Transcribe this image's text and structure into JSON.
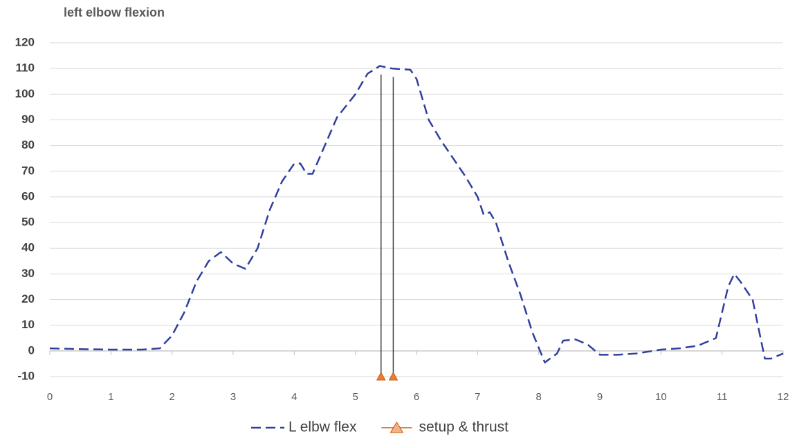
{
  "chart_data": {
    "type": "line",
    "title": "left elbow flexion",
    "xlim": [
      0,
      12
    ],
    "xticks": [
      0,
      1,
      2,
      3,
      4,
      5,
      6,
      7,
      8,
      9,
      10,
      11,
      12
    ],
    "ylim": [
      -10,
      120
    ],
    "yticks": [
      -10,
      0,
      10,
      20,
      30,
      40,
      50,
      60,
      70,
      80,
      90,
      100,
      110,
      120
    ],
    "grid": true,
    "legend": "bottom",
    "series": [
      {
        "name": "L elbw flex",
        "color": "#2f3f9c",
        "style": "dashed",
        "x": [
          0,
          0.5,
          1,
          1.5,
          1.8,
          2,
          2.2,
          2.4,
          2.6,
          2.8,
          3,
          3.2,
          3.4,
          3.6,
          3.8,
          4,
          4.1,
          4.2,
          4.3,
          4.5,
          4.7,
          5,
          5.2,
          5.4,
          5.6,
          5.9,
          6,
          6.2,
          6.4,
          6.6,
          6.8,
          7,
          7.1,
          7.2,
          7.3,
          7.5,
          7.7,
          7.9,
          8.1,
          8.3,
          8.4,
          8.6,
          8.8,
          9,
          9.3,
          9.6,
          10,
          10.3,
          10.6,
          10.9,
          11.1,
          11.2,
          11.3,
          11.5,
          11.7,
          11.8,
          12
        ],
        "values": [
          1,
          0.7,
          0.5,
          0.5,
          1,
          6,
          15,
          27,
          35,
          38.5,
          34,
          32,
          40,
          55,
          66,
          73,
          73,
          69,
          69,
          80,
          91,
          100,
          108,
          111,
          110,
          109.5,
          106,
          90,
          82,
          75,
          68,
          60,
          53,
          54,
          50,
          35,
          22,
          7,
          -4.5,
          -1,
          4,
          4.5,
          2.5,
          -1.5,
          -1.5,
          -1,
          0.5,
          1,
          2,
          5,
          25,
          30,
          27,
          20,
          -3,
          -3,
          -1
        ]
      },
      {
        "name": "setup & thrust",
        "color": "#ed7d31",
        "marker_color": "#f4b183",
        "marker": "triangle",
        "x": [
          5.42,
          5.62
        ],
        "values": [
          -10,
          -10
        ]
      }
    ]
  }
}
